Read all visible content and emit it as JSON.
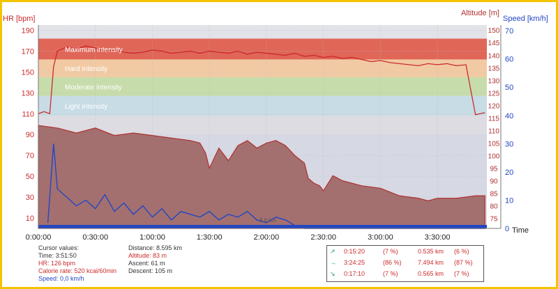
{
  "colors": {
    "frame": "#f5c400",
    "hr": "#cc2a2a",
    "altitude": "#b03030",
    "altitude_fill": "#a3706f",
    "speed": "#2246c4",
    "zone_max": "#e06050",
    "zone_hard": "#f2c9a0",
    "zone_moderate": "#c6dca8",
    "zone_light": "#c7dce6",
    "zone_none": "#dcdce2",
    "grid": "#b8b8c0"
  },
  "chart_data": {
    "type": "line",
    "x_unit": "time",
    "xlim": [
      "0:00:00",
      "3:56:00"
    ],
    "x_ticks": [
      "0:00:00",
      "0:30:00",
      "1:00:00",
      "1:30:00",
      "2:00:00",
      "2:30:00",
      "3:00:00",
      "3:30:00"
    ],
    "x_end_label": "Time",
    "y_left": {
      "label": "HR [bpm]",
      "ticks": [
        "190",
        "170",
        "150",
        "130",
        "110",
        "90",
        "70",
        "50",
        "30",
        "10"
      ],
      "lim": [
        0,
        195
      ]
    },
    "y_mid": {
      "label": "Altitude [m]",
      "ticks": [
        "150",
        "145",
        "140",
        "135",
        "130",
        "125",
        "120",
        "115",
        "110",
        "105",
        "100",
        "95",
        "90",
        "85",
        "80",
        "75"
      ],
      "lim": [
        71,
        152
      ]
    },
    "y_right": {
      "label": "Speed [km/h]",
      "ticks": [
        "70",
        "60",
        "50",
        "40",
        "30",
        "20",
        "10",
        "0"
      ],
      "lim": [
        0,
        72
      ]
    },
    "zones": [
      {
        "name": "Maximum intensity",
        "lo": 162,
        "hi": 182
      },
      {
        "name": "Hard intensity",
        "lo": 145,
        "hi": 162
      },
      {
        "name": "Moderate intensity",
        "lo": 127,
        "hi": 145
      },
      {
        "name": "Light intensity",
        "lo": 108,
        "hi": 127
      },
      {
        "name": "",
        "lo": 90,
        "hi": 108
      }
    ],
    "series": [
      {
        "name": "HR",
        "axis": "left",
        "x_min": [
          0,
          3,
          6,
          8,
          10,
          15,
          20,
          25,
          30,
          35,
          40,
          45,
          50,
          55,
          60,
          65,
          70,
          75,
          80,
          85,
          90,
          95,
          100,
          105,
          110,
          115,
          120,
          125,
          130,
          135,
          140,
          145,
          150,
          155,
          160,
          165,
          170,
          175,
          180,
          185,
          190,
          195,
          200,
          205,
          210,
          215,
          220,
          225,
          230,
          235
        ],
        "values": [
          110,
          112,
          110,
          155,
          170,
          174,
          172,
          175,
          173,
          170,
          171,
          169,
          168,
          169,
          171,
          170,
          168,
          169,
          170,
          168,
          170,
          169,
          168,
          170,
          167,
          169,
          168,
          167,
          166,
          168,
          165,
          166,
          164,
          165,
          163,
          164,
          162,
          160,
          161,
          159,
          158,
          157,
          156,
          158,
          157,
          158,
          156,
          157,
          109,
          111
        ]
      },
      {
        "name": "Altitude",
        "axis": "mid",
        "x_min": [
          0,
          10,
          20,
          30,
          40,
          50,
          60,
          70,
          80,
          85,
          88,
          90,
          95,
          100,
          105,
          110,
          115,
          120,
          125,
          130,
          135,
          140,
          142,
          145,
          148,
          150,
          155,
          160,
          170,
          180,
          190,
          200,
          205,
          210,
          220,
          230,
          235
        ],
        "values": [
          112,
          111,
          109,
          111,
          108,
          109,
          108,
          107,
          106,
          105,
          101,
          95,
          103,
          98,
          104,
          106,
          103,
          105,
          106,
          104,
          100,
          97,
          91,
          89,
          88,
          86,
          92,
          90,
          88,
          87,
          84,
          83,
          82,
          83,
          83,
          84,
          84
        ]
      },
      {
        "name": "Speed",
        "axis": "right",
        "x_min": [
          5,
          8,
          10,
          15,
          20,
          25,
          30,
          35,
          40,
          45,
          50,
          55,
          60,
          65,
          70,
          75,
          80,
          85,
          90,
          95,
          100,
          105,
          110,
          115,
          120,
          125,
          130,
          135,
          140,
          145,
          150,
          155,
          160,
          170,
          180,
          190,
          200,
          210,
          220,
          230,
          235
        ],
        "values": [
          2,
          30,
          14,
          11,
          8,
          10,
          7,
          12,
          6,
          9,
          5,
          8,
          4,
          7,
          3,
          6,
          5,
          4,
          6,
          3,
          5,
          4,
          6,
          3,
          2,
          4,
          3,
          1,
          0,
          0,
          0,
          0,
          0,
          0,
          0,
          0,
          0,
          0,
          0,
          0,
          0
        ]
      }
    ],
    "annotations": [
      "8.6 km"
    ]
  },
  "cursor_values": {
    "title": "Cursor values:",
    "time": "Time: 3:51:50",
    "hr": "HR: 126 bpm",
    "calorie_rate": "Calorie rate: 520 kcal/60min",
    "speed": "Speed: 0,0 km/h"
  },
  "summary": {
    "distance": "Distance: 8.595 km",
    "altitude": "Altitude: 83 m",
    "ascent": "Ascent: 61 m",
    "descent": "Descent: 105 m"
  },
  "laps": [
    {
      "icon": "↗",
      "time": "0:15:20",
      "time_pct": "(7 %)",
      "dist": "0.535 km",
      "dist_pct": "(6 %)"
    },
    {
      "icon": "→",
      "time": "3:24:25",
      "time_pct": "(86 %)",
      "dist": "7.494 km",
      "dist_pct": "(87 %)"
    },
    {
      "icon": "↘",
      "time": "0:17:10",
      "time_pct": "(7 %)",
      "dist": "0.565 km",
      "dist_pct": "(7 %)"
    }
  ]
}
